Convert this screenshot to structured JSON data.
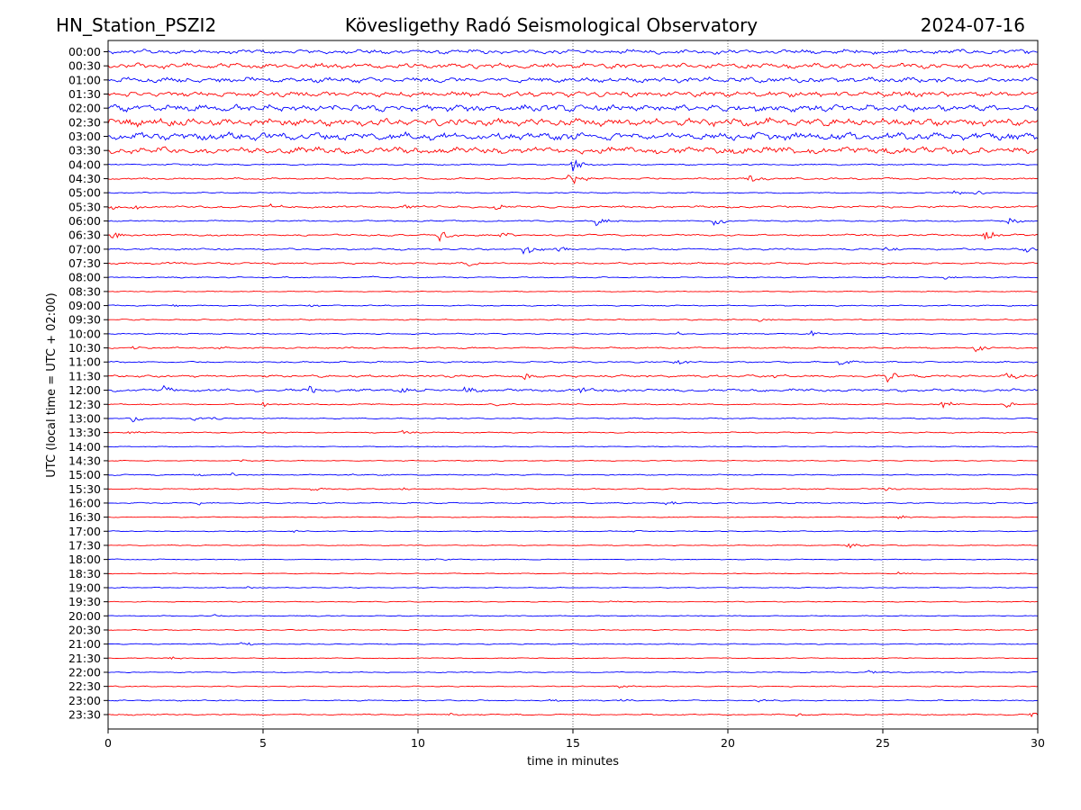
{
  "header": {
    "station": "HN_Station_PSZI2",
    "observatory": "Kövesligethy Radó Seismological Observatory",
    "date": "2024-07-16"
  },
  "chart_data": {
    "type": "line",
    "subtype": "helicorder",
    "xlabel": "time in minutes",
    "ylabel": "UTC (local time = UTC + 02:00)",
    "xlim": [
      0,
      30
    ],
    "x_ticks": [
      0,
      5,
      10,
      15,
      20,
      25,
      30
    ],
    "x_tick_labels": [
      "0",
      "5",
      "10",
      "15",
      "20",
      "25",
      "30"
    ],
    "vertical_gridlines_at": [
      5,
      10,
      15,
      20,
      25
    ],
    "grid_style": "dotted",
    "trace_colors": [
      "#0000ff",
      "#ff0000"
    ],
    "rows": [
      {
        "label": "00:00",
        "amp": 3.0
      },
      {
        "label": "00:30",
        "amp": 3.5
      },
      {
        "label": "01:00",
        "amp": 3.5
      },
      {
        "label": "01:30",
        "amp": 3.5
      },
      {
        "label": "02:00",
        "amp": 4.5
      },
      {
        "label": "02:30",
        "amp": 5.0
      },
      {
        "label": "03:00",
        "amp": 5.0
      },
      {
        "label": "03:30",
        "amp": 4.5
      },
      {
        "label": "04:00",
        "amp": 1.0,
        "events": [
          [
            15.0,
            8
          ]
        ]
      },
      {
        "label": "04:30",
        "amp": 1.2,
        "events": [
          [
            14.9,
            10
          ],
          [
            20.7,
            4
          ]
        ]
      },
      {
        "label": "05:00",
        "amp": 0.8,
        "events": [
          [
            27.3,
            3
          ],
          [
            28.0,
            3
          ]
        ]
      },
      {
        "label": "05:30",
        "amp": 1.5,
        "events": [
          [
            0.1,
            4
          ],
          [
            0.8,
            3
          ],
          [
            5.2,
            3
          ],
          [
            9.6,
            3
          ],
          [
            12.5,
            3
          ]
        ]
      },
      {
        "label": "06:00",
        "amp": 1.0,
        "events": [
          [
            15.7,
            7
          ],
          [
            19.5,
            6
          ],
          [
            29.0,
            4
          ]
        ]
      },
      {
        "label": "06:30",
        "amp": 1.2,
        "events": [
          [
            0.1,
            4
          ],
          [
            10.7,
            7
          ],
          [
            12.7,
            4
          ],
          [
            28.3,
            6
          ]
        ]
      },
      {
        "label": "07:00",
        "amp": 1.2,
        "events": [
          [
            13.4,
            8
          ],
          [
            14.5,
            3
          ],
          [
            25.1,
            3
          ],
          [
            29.6,
            4
          ]
        ]
      },
      {
        "label": "07:30",
        "amp": 1.2,
        "events": [
          [
            11.6,
            4
          ],
          [
            2.0,
            2
          ],
          [
            3.3,
            2
          ]
        ]
      },
      {
        "label": "08:00",
        "amp": 0.8,
        "events": [
          [
            8.5,
            2
          ],
          [
            27.0,
            2
          ]
        ]
      },
      {
        "label": "08:30",
        "amp": 0.6
      },
      {
        "label": "09:00",
        "amp": 0.8,
        "events": [
          [
            6.5,
            2
          ],
          [
            2.1,
            1.5
          ]
        ]
      },
      {
        "label": "09:30",
        "amp": 0.8,
        "events": [
          [
            21.0,
            2
          ]
        ]
      },
      {
        "label": "10:00",
        "amp": 0.8,
        "events": [
          [
            18.4,
            3
          ],
          [
            22.7,
            3
          ]
        ]
      },
      {
        "label": "10:30",
        "amp": 1.0,
        "events": [
          [
            0.8,
            2
          ],
          [
            3.5,
            2
          ],
          [
            28.0,
            4
          ]
        ]
      },
      {
        "label": "11:00",
        "amp": 1.0,
        "events": [
          [
            18.3,
            4
          ],
          [
            23.6,
            4
          ]
        ]
      },
      {
        "label": "11:30",
        "amp": 1.6,
        "events": [
          [
            13.4,
            4
          ],
          [
            21.5,
            3
          ],
          [
            25.1,
            7
          ],
          [
            29.0,
            5
          ]
        ]
      },
      {
        "label": "12:00",
        "amp": 1.8,
        "events": [
          [
            1.8,
            5
          ],
          [
            6.5,
            4
          ],
          [
            9.5,
            5
          ],
          [
            11.5,
            4
          ],
          [
            15.2,
            4
          ]
        ]
      },
      {
        "label": "12:30",
        "amp": 0.8,
        "events": [
          [
            5.0,
            3
          ],
          [
            12.5,
            3
          ],
          [
            26.9,
            5
          ],
          [
            29.0,
            4
          ]
        ]
      },
      {
        "label": "13:00",
        "amp": 0.8,
        "events": [
          [
            0.8,
            4
          ],
          [
            2.7,
            3
          ],
          [
            3.4,
            2
          ]
        ]
      },
      {
        "label": "13:30",
        "amp": 0.8,
        "events": [
          [
            0.6,
            3
          ],
          [
            5.0,
            2
          ],
          [
            9.5,
            2
          ]
        ]
      },
      {
        "label": "14:00",
        "amp": 0.6
      },
      {
        "label": "14:30",
        "amp": 0.6,
        "events": [
          [
            4.3,
            1.5
          ]
        ]
      },
      {
        "label": "15:00",
        "amp": 0.8,
        "events": [
          [
            2.8,
            2
          ],
          [
            4.0,
            3
          ],
          [
            7.8,
            2
          ]
        ]
      },
      {
        "label": "15:30",
        "amp": 0.8,
        "events": [
          [
            6.5,
            3
          ],
          [
            9.5,
            2
          ],
          [
            25.0,
            3
          ]
        ]
      },
      {
        "label": "16:00",
        "amp": 0.8,
        "events": [
          [
            2.8,
            3
          ],
          [
            18.0,
            3
          ]
        ]
      },
      {
        "label": "16:30",
        "amp": 0.6,
        "events": [
          [
            25.5,
            2
          ]
        ]
      },
      {
        "label": "17:00",
        "amp": 0.6,
        "events": [
          [
            6.0,
            2
          ],
          [
            17.0,
            2
          ]
        ]
      },
      {
        "label": "17:30",
        "amp": 0.6,
        "events": [
          [
            23.9,
            3
          ]
        ]
      },
      {
        "label": "18:00",
        "amp": 0.6,
        "events": [
          [
            10.5,
            1.5
          ]
        ]
      },
      {
        "label": "18:30",
        "amp": 0.6,
        "events": [
          [
            25.5,
            2
          ]
        ]
      },
      {
        "label": "19:00",
        "amp": 0.6,
        "events": [
          [
            4.5,
            1.5
          ]
        ]
      },
      {
        "label": "19:30",
        "amp": 0.6,
        "events": [
          [
            16.2,
            2
          ]
        ]
      },
      {
        "label": "20:00",
        "amp": 0.6,
        "events": [
          [
            3.4,
            1.5
          ]
        ]
      },
      {
        "label": "20:30",
        "amp": 0.6
      },
      {
        "label": "21:00",
        "amp": 0.7,
        "events": [
          [
            4.3,
            3
          ]
        ]
      },
      {
        "label": "21:30",
        "amp": 0.6,
        "events": [
          [
            2.0,
            1.5
          ]
        ]
      },
      {
        "label": "22:00",
        "amp": 0.7,
        "events": [
          [
            24.5,
            3
          ]
        ]
      },
      {
        "label": "22:30",
        "amp": 0.7,
        "events": [
          [
            16.5,
            2
          ]
        ]
      },
      {
        "label": "23:00",
        "amp": 0.8,
        "events": [
          [
            14.3,
            2
          ],
          [
            16.5,
            2
          ],
          [
            20.9,
            3
          ]
        ]
      },
      {
        "label": "23:30",
        "amp": 0.9,
        "events": [
          [
            11.0,
            2
          ],
          [
            22.2,
            2
          ],
          [
            29.8,
            3
          ]
        ]
      }
    ]
  }
}
